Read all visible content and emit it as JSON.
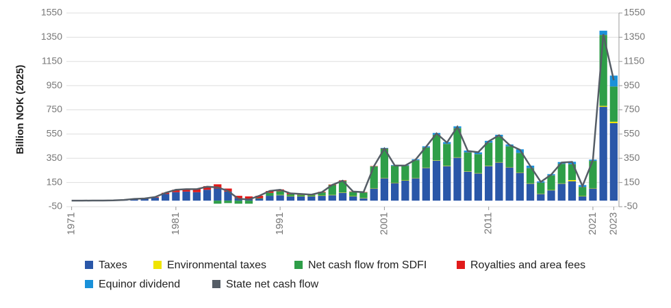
{
  "chart_data": {
    "type": "stacked-bar-line",
    "y_label": "Billion NOK (2025)",
    "x": [
      1971,
      1972,
      1973,
      1974,
      1975,
      1976,
      1977,
      1978,
      1979,
      1980,
      1981,
      1982,
      1983,
      1984,
      1985,
      1986,
      1987,
      1988,
      1989,
      1990,
      1991,
      1992,
      1993,
      1994,
      1995,
      1996,
      1997,
      1998,
      1999,
      2000,
      2001,
      2002,
      2003,
      2004,
      2005,
      2006,
      2007,
      2008,
      2009,
      2010,
      2011,
      2012,
      2013,
      2014,
      2015,
      2016,
      2017,
      2018,
      2019,
      2020,
      2021,
      2022,
      2023
    ],
    "xlim": [
      1970.5,
      2023.5
    ],
    "xticks": [
      1971,
      1981,
      1991,
      2001,
      2011,
      2021,
      2023
    ],
    "ylim": [
      -50,
      1550
    ],
    "yticks": [
      -50,
      150,
      350,
      550,
      750,
      950,
      1150,
      1350,
      1550
    ],
    "y2lim": [
      -50,
      1550
    ],
    "y2ticks": [
      -50,
      150,
      350,
      550,
      750,
      950,
      1150,
      1350,
      1550
    ],
    "grid": true,
    "series": [
      {
        "name": "Taxes",
        "color": "#2a57a8",
        "values": [
          0,
          0,
          1,
          1,
          2,
          5,
          12,
          15,
          25,
          55,
          70,
          75,
          70,
          90,
          100,
          75,
          20,
          10,
          15,
          40,
          45,
          35,
          35,
          35,
          40,
          45,
          65,
          35,
          20,
          100,
          185,
          145,
          165,
          185,
          270,
          330,
          285,
          355,
          240,
          225,
          285,
          315,
          275,
          230,
          140,
          55,
          85,
          140,
          160,
          35,
          100,
          775,
          640
        ]
      },
      {
        "name": "Environmental taxes",
        "color": "#f0e400",
        "values": [
          0,
          0,
          0,
          0,
          0,
          0,
          0,
          0,
          0,
          0,
          0,
          0,
          0,
          0,
          0,
          0,
          0,
          0,
          0,
          0,
          3,
          3,
          3,
          3,
          3,
          3,
          3,
          3,
          3,
          3,
          3,
          3,
          3,
          3,
          3,
          3,
          3,
          3,
          3,
          3,
          3,
          3,
          3,
          3,
          3,
          3,
          3,
          3,
          10,
          3,
          3,
          8,
          12
        ]
      },
      {
        "name": "Net cash flow from SDFI",
        "color": "#2e9e48",
        "values": [
          0,
          0,
          0,
          0,
          0,
          0,
          0,
          0,
          0,
          0,
          0,
          0,
          0,
          0,
          -25,
          -20,
          -25,
          -25,
          5,
          25,
          30,
          15,
          10,
          10,
          25,
          80,
          95,
          35,
          45,
          180,
          240,
          140,
          120,
          145,
          165,
          210,
          180,
          240,
          155,
          155,
          190,
          210,
          170,
          160,
          125,
          90,
          120,
          160,
          130,
          75,
          225,
          585,
          290
        ]
      },
      {
        "name": "Royalties and area fees",
        "color": "#e11b1b",
        "values": [
          0,
          0,
          0,
          0,
          0,
          1,
          2,
          3,
          5,
          10,
          20,
          20,
          25,
          30,
          35,
          25,
          20,
          25,
          20,
          15,
          15,
          10,
          10,
          5,
          5,
          5,
          5,
          3,
          3,
          3,
          3,
          1,
          1,
          1,
          1,
          1,
          1,
          1,
          1,
          1,
          1,
          1,
          1,
          1,
          1,
          1,
          1,
          1,
          1,
          1,
          1,
          1,
          1
        ]
      },
      {
        "name": "Equinor dividend",
        "color": "#1a91d9",
        "values": [
          0,
          0,
          0,
          0,
          0,
          0,
          0,
          0,
          0,
          0,
          0,
          0,
          0,
          0,
          0,
          0,
          0,
          0,
          0,
          0,
          0,
          0,
          0,
          0,
          0,
          0,
          0,
          0,
          0,
          0,
          5,
          5,
          5,
          8,
          10,
          15,
          15,
          15,
          15,
          15,
          15,
          15,
          15,
          30,
          20,
          10,
          10,
          15,
          20,
          15,
          10,
          35,
          90
        ]
      },
      {
        "name": "State net cash flow",
        "color": "#555d66",
        "type": "line",
        "axis": "y2",
        "values": [
          0,
          0,
          1,
          1,
          2,
          6,
          14,
          18,
          30,
          65,
          90,
          95,
          95,
          115,
          110,
          80,
          15,
          10,
          40,
          80,
          90,
          60,
          55,
          50,
          70,
          130,
          165,
          75,
          70,
          285,
          430,
          290,
          290,
          340,
          445,
          555,
          480,
          610,
          410,
          400,
          490,
          540,
          460,
          420,
          285,
          155,
          215,
          315,
          320,
          120,
          335,
          1375,
          995
        ]
      }
    ]
  }
}
